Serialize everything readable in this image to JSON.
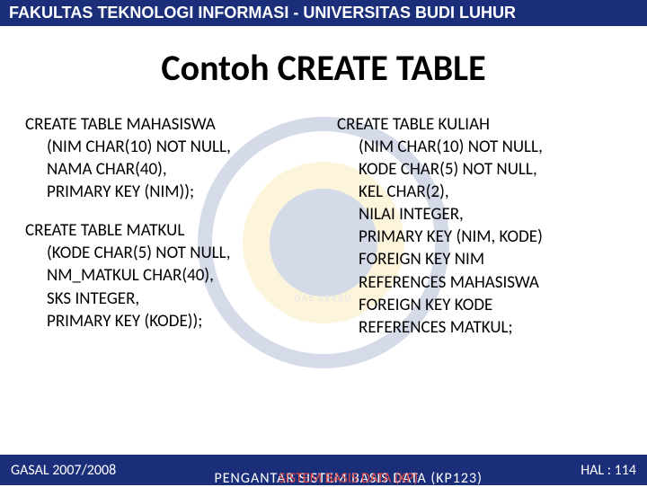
{
  "colors": {
    "header_bg": "#1b2e7a",
    "header_text": "#ffffff",
    "body_text": "#000000",
    "footer_bg": "#1b2e7a",
    "footer_text": "#ffffff",
    "footer_accent": "#d94a4a",
    "wm_ring": "#1b3a8a",
    "wm_fill": "#f3c93c"
  },
  "header": {
    "text": "FAKULTAS TEKNOLOGI INFORMASI - UNIVERSITAS BUDI LUHUR"
  },
  "title": "Contoh CREATE TABLE",
  "watermark": {
    "curve_text": "DAS BERBU"
  },
  "left": {
    "block1": {
      "l1": "CREATE TABLE MAHASISWA",
      "l2": "(NIM CHAR(10) NOT NULL,",
      "l3": "NAMA CHAR(40),",
      "l4": "PRIMARY KEY (NIM));"
    },
    "block2": {
      "l1": "CREATE TABLE MATKUL",
      "l2": "(KODE CHAR(5) NOT NULL,",
      "l3": "NM_MATKUL CHAR(40),",
      "l4": "SKS INTEGER,",
      "l5": "PRIMARY KEY (KODE));"
    }
  },
  "right": {
    "l1": "CREATE TABLE KULIAH",
    "l2": "(NIM CHAR(10) NOT NULL,",
    "l3": "KODE CHAR(5) NOT NULL,",
    "l4": "KEL CHAR(2),",
    "l5": "NILAI INTEGER,",
    "l6": "PRIMARY KEY (NIM, KODE)",
    "l7": "FOREIGN KEY NIM",
    "l8": "REFERENCES MAHASISWA",
    "l9": "FOREIGN KEY KODE",
    "l10": "REFERENCES MATKUL;"
  },
  "footer": {
    "left": "GASAL 2007/2008",
    "center1": "SISTEM BASIS DATA (KP)",
    "center2": "PENGANTAR SISTEM BASIS DATA (KP123)",
    "right": "HAL : 114"
  }
}
